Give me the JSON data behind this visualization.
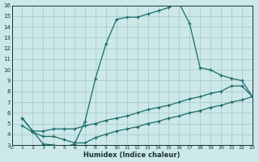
{
  "xlabel": "Humidex (Indice chaleur)",
  "bg_color": "#cce8e8",
  "grid_color": "#aacccc",
  "line_color": "#1a6b6b",
  "xlim": [
    0,
    23
  ],
  "ylim": [
    3,
    16
  ],
  "xticks": [
    0,
    1,
    2,
    3,
    4,
    5,
    6,
    7,
    8,
    9,
    10,
    11,
    12,
    13,
    14,
    15,
    16,
    17,
    18,
    19,
    20,
    21,
    22,
    23
  ],
  "yticks": [
    3,
    4,
    5,
    6,
    7,
    8,
    9,
    10,
    11,
    12,
    13,
    14,
    15,
    16
  ],
  "curve1_x": [
    1,
    2,
    3,
    4,
    5,
    6,
    7,
    8,
    9,
    10,
    11,
    12,
    13,
    14,
    15,
    16,
    17,
    18,
    19,
    20,
    21,
    22,
    23
  ],
  "curve1_y": [
    5.5,
    4.3,
    3.1,
    3.0,
    2.8,
    3.1,
    5.2,
    9.2,
    12.4,
    14.7,
    14.9,
    14.9,
    15.2,
    15.5,
    15.8,
    16.2,
    14.3,
    10.2,
    10.0,
    9.5,
    9.2,
    9.0,
    7.5
  ],
  "curve2_x": [
    1,
    2,
    3,
    4,
    5,
    6,
    7,
    8,
    9,
    10,
    11,
    12,
    13,
    14,
    15,
    16,
    17,
    18,
    19,
    20,
    21,
    22,
    23
  ],
  "curve2_y": [
    5.5,
    4.3,
    4.3,
    4.5,
    4.5,
    4.5,
    4.8,
    5.0,
    5.3,
    5.5,
    5.7,
    6.0,
    6.3,
    6.5,
    6.7,
    7.0,
    7.3,
    7.5,
    7.8,
    8.0,
    8.5,
    8.5,
    7.5
  ],
  "curve3_x": [
    1,
    2,
    3,
    4,
    5,
    6,
    7,
    8,
    9,
    10,
    11,
    12,
    13,
    14,
    15,
    16,
    17,
    18,
    19,
    20,
    21,
    22,
    23
  ],
  "curve3_y": [
    4.8,
    4.2,
    3.8,
    3.8,
    3.5,
    3.2,
    3.2,
    3.7,
    4.0,
    4.3,
    4.5,
    4.7,
    5.0,
    5.2,
    5.5,
    5.7,
    6.0,
    6.2,
    6.5,
    6.7,
    7.0,
    7.2,
    7.5
  ]
}
